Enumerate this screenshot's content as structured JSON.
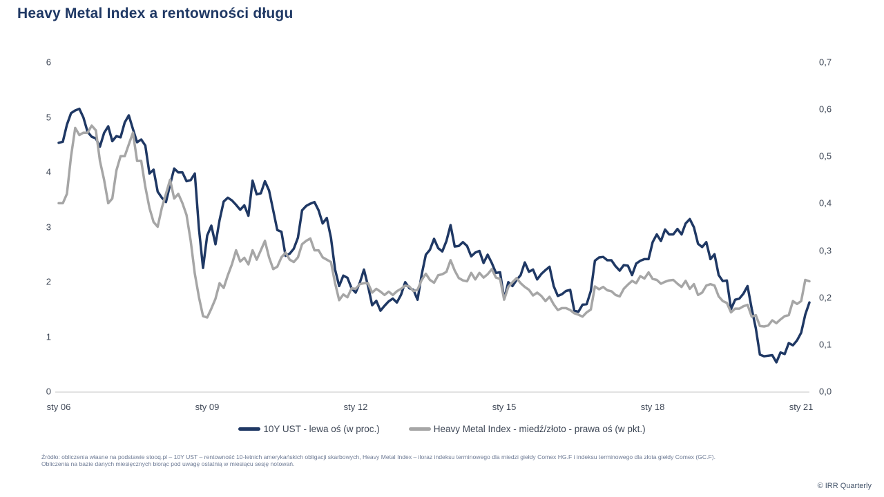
{
  "header": {
    "title": "Heavy Metal Index a rentowności długu"
  },
  "colors": {
    "navy": "#1f3864",
    "gray": "#a6a6a6",
    "axis_text": "#3e4756",
    "axis_line": "#d9d9d9",
    "footnote_text": "#6e7b95",
    "copyright_text": "#44546a"
  },
  "legend": {
    "items": [
      {
        "label": "10Y UST - lewa oś (w proc.)",
        "color": "#1f3864"
      },
      {
        "label": "Heavy Metal Index - miedź/złoto - prawa oś (w pkt.)",
        "color": "#a6a6a6"
      }
    ]
  },
  "footnote": {
    "text": "Źródło: obliczenia własne na podstawie stooq.pl – 10Y UST – rentowność 10-letnich amerykańskich obligacji skarbowych, Heavy Metal Index – iloraz indeksu terminowego dla miedzi giełdy Comex HG.F i indeksu terminowego dla złota giełdy Comex (GC.F). Obliczenia na bazie danych miesięcznych biorąc pod uwagę ostatnią w miesiącu sesję notowań."
  },
  "footer": {
    "copyright": "© IRR Quarterly"
  },
  "chart_data": {
    "type": "line",
    "title": "Heavy Metal Index a rentowności długu",
    "frequency": "monthly",
    "x_start": "2006-01",
    "x_end": "2021-03",
    "grid": false,
    "legend_position": "bottom",
    "left_axis": {
      "range": [
        0,
        6
      ],
      "ticks": [
        "0",
        "1",
        "2",
        "3",
        "4",
        "5",
        "6"
      ],
      "tick_values": [
        0,
        1,
        2,
        3,
        4,
        5,
        6
      ]
    },
    "right_axis": {
      "range": [
        0,
        0.7
      ],
      "ticks": [
        "0,0",
        "0,1",
        "0,2",
        "0,3",
        "0,4",
        "0,5",
        "0,6",
        "0,7"
      ],
      "tick_values": [
        0,
        0.1,
        0.2,
        0.3,
        0.4,
        0.5,
        0.6,
        0.7
      ]
    },
    "x_ticks": [
      {
        "label": "sty 06",
        "month_index": 0
      },
      {
        "label": "sty 09",
        "month_index": 36
      },
      {
        "label": "sty 12",
        "month_index": 72
      },
      {
        "label": "sty 15",
        "month_index": 108
      },
      {
        "label": "sty 18",
        "month_index": 144
      },
      {
        "label": "sty 21",
        "month_index": 180
      }
    ],
    "series": [
      {
        "name": "10Y UST - lewa oś (w proc.)",
        "axis": "left",
        "color": "#1f3864",
        "values": [
          4.53,
          4.55,
          4.86,
          5.07,
          5.12,
          5.15,
          4.99,
          4.73,
          4.64,
          4.61,
          4.46,
          4.71,
          4.83,
          4.56,
          4.65,
          4.63,
          4.9,
          5.03,
          4.78,
          4.54,
          4.59,
          4.48,
          3.97,
          4.04,
          3.64,
          3.53,
          3.45,
          3.77,
          4.06,
          3.99,
          3.99,
          3.83,
          3.85,
          3.97,
          2.96,
          2.25,
          2.84,
          3.02,
          2.68,
          3.12,
          3.46,
          3.53,
          3.48,
          3.4,
          3.31,
          3.39,
          3.2,
          3.84,
          3.59,
          3.61,
          3.83,
          3.66,
          3.3,
          2.94,
          2.91,
          2.47,
          2.51,
          2.6,
          2.8,
          3.3,
          3.38,
          3.42,
          3.45,
          3.3,
          3.06,
          3.16,
          2.8,
          2.22,
          1.92,
          2.11,
          2.07,
          1.88,
          1.8,
          1.98,
          2.22,
          1.92,
          1.57,
          1.65,
          1.47,
          1.56,
          1.64,
          1.69,
          1.62,
          1.76,
          1.99,
          1.88,
          1.85,
          1.67,
          2.13,
          2.49,
          2.58,
          2.78,
          2.61,
          2.55,
          2.74,
          3.03,
          2.64,
          2.65,
          2.72,
          2.65,
          2.46,
          2.53,
          2.56,
          2.34,
          2.49,
          2.34,
          2.16,
          2.17,
          1.68,
          1.99,
          1.92,
          2.03,
          2.12,
          2.35,
          2.18,
          2.22,
          2.04,
          2.14,
          2.21,
          2.27,
          1.92,
          1.74,
          1.77,
          1.83,
          1.85,
          1.47,
          1.45,
          1.58,
          1.59,
          1.83,
          2.38,
          2.44,
          2.45,
          2.39,
          2.39,
          2.28,
          2.2,
          2.3,
          2.29,
          2.12,
          2.33,
          2.38,
          2.41,
          2.41,
          2.72,
          2.86,
          2.74,
          2.95,
          2.86,
          2.86,
          2.96,
          2.86,
          3.06,
          3.14,
          2.99,
          2.69,
          2.63,
          2.72,
          2.41,
          2.5,
          2.12,
          2.01,
          2.02,
          1.5,
          1.67,
          1.69,
          1.78,
          1.92,
          1.51,
          1.15,
          0.67,
          0.64,
          0.65,
          0.66,
          0.53,
          0.71,
          0.68,
          0.88,
          0.84,
          0.93,
          1.07,
          1.4,
          1.62
        ]
      },
      {
        "name": "Heavy Metal Index - miedź/złoto - prawa oś (w pkt.)",
        "axis": "right",
        "color": "#a6a6a6",
        "values": [
          0.4,
          0.4,
          0.42,
          0.5,
          0.56,
          0.545,
          0.55,
          0.55,
          0.565,
          0.555,
          0.49,
          0.45,
          0.4,
          0.41,
          0.47,
          0.5,
          0.5,
          0.525,
          0.55,
          0.49,
          0.49,
          0.435,
          0.39,
          0.36,
          0.35,
          0.39,
          0.42,
          0.45,
          0.41,
          0.42,
          0.4,
          0.375,
          0.32,
          0.25,
          0.2,
          0.16,
          0.157,
          0.176,
          0.197,
          0.23,
          0.22,
          0.247,
          0.27,
          0.3,
          0.276,
          0.284,
          0.27,
          0.3,
          0.28,
          0.3,
          0.32,
          0.285,
          0.26,
          0.265,
          0.285,
          0.295,
          0.28,
          0.275,
          0.285,
          0.313,
          0.32,
          0.325,
          0.3,
          0.3,
          0.285,
          0.28,
          0.275,
          0.23,
          0.194,
          0.206,
          0.2,
          0.219,
          0.218,
          0.228,
          0.23,
          0.23,
          0.21,
          0.218,
          0.212,
          0.205,
          0.212,
          0.205,
          0.213,
          0.218,
          0.225,
          0.223,
          0.213,
          0.216,
          0.237,
          0.25,
          0.237,
          0.231,
          0.247,
          0.249,
          0.254,
          0.279,
          0.257,
          0.241,
          0.236,
          0.234,
          0.252,
          0.238,
          0.252,
          0.242,
          0.249,
          0.26,
          0.242,
          0.239,
          0.195,
          0.222,
          0.232,
          0.241,
          0.23,
          0.222,
          0.216,
          0.204,
          0.21,
          0.203,
          0.192,
          0.201,
          0.185,
          0.173,
          0.177,
          0.177,
          0.173,
          0.166,
          0.163,
          0.159,
          0.168,
          0.174,
          0.223,
          0.217,
          0.222,
          0.215,
          0.213,
          0.205,
          0.202,
          0.218,
          0.227,
          0.235,
          0.23,
          0.245,
          0.24,
          0.253,
          0.239,
          0.237,
          0.229,
          0.233,
          0.236,
          0.237,
          0.229,
          0.222,
          0.235,
          0.218,
          0.228,
          0.205,
          0.21,
          0.225,
          0.228,
          0.225,
          0.202,
          0.192,
          0.188,
          0.168,
          0.176,
          0.176,
          0.181,
          0.184,
          0.159,
          0.162,
          0.139,
          0.138,
          0.14,
          0.151,
          0.145,
          0.153,
          0.16,
          0.162,
          0.192,
          0.186,
          0.192,
          0.237,
          0.234
        ]
      }
    ]
  }
}
